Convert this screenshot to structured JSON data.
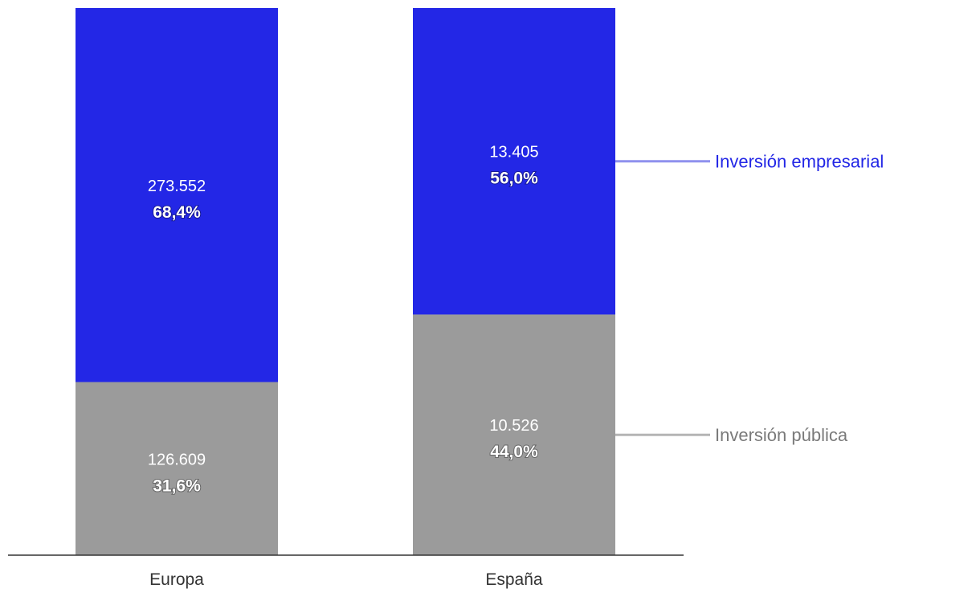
{
  "chart_data": {
    "type": "bar",
    "stacked": true,
    "categories": [
      "Europa",
      "España"
    ],
    "series": [
      {
        "name": "Inversión pública",
        "values": [
          126609,
          10526
        ],
        "value_labels": [
          "126.609",
          "10.526"
        ],
        "percent_labels": [
          "31,6%",
          "44,0%"
        ],
        "percent_values": [
          31.6,
          44.0
        ],
        "color": "#9b9b9b",
        "legend_line_color": "#b5b5b5",
        "legend_text_color": "#7a7a7a"
      },
      {
        "name": "Inversión empresarial",
        "values": [
          273552,
          13405
        ],
        "value_labels": [
          "273.552",
          "13.405"
        ],
        "percent_labels": [
          "68,4%",
          "56,0%"
        ],
        "percent_values": [
          68.4,
          56.0
        ],
        "color": "#2327e6",
        "legend_line_color": "#8f91ee",
        "legend_text_color": "#2327e6"
      }
    ],
    "normalized": true,
    "ylim": [
      0,
      100
    ],
    "legend_position": "right",
    "grid": false,
    "baseline_color": "#333333"
  }
}
